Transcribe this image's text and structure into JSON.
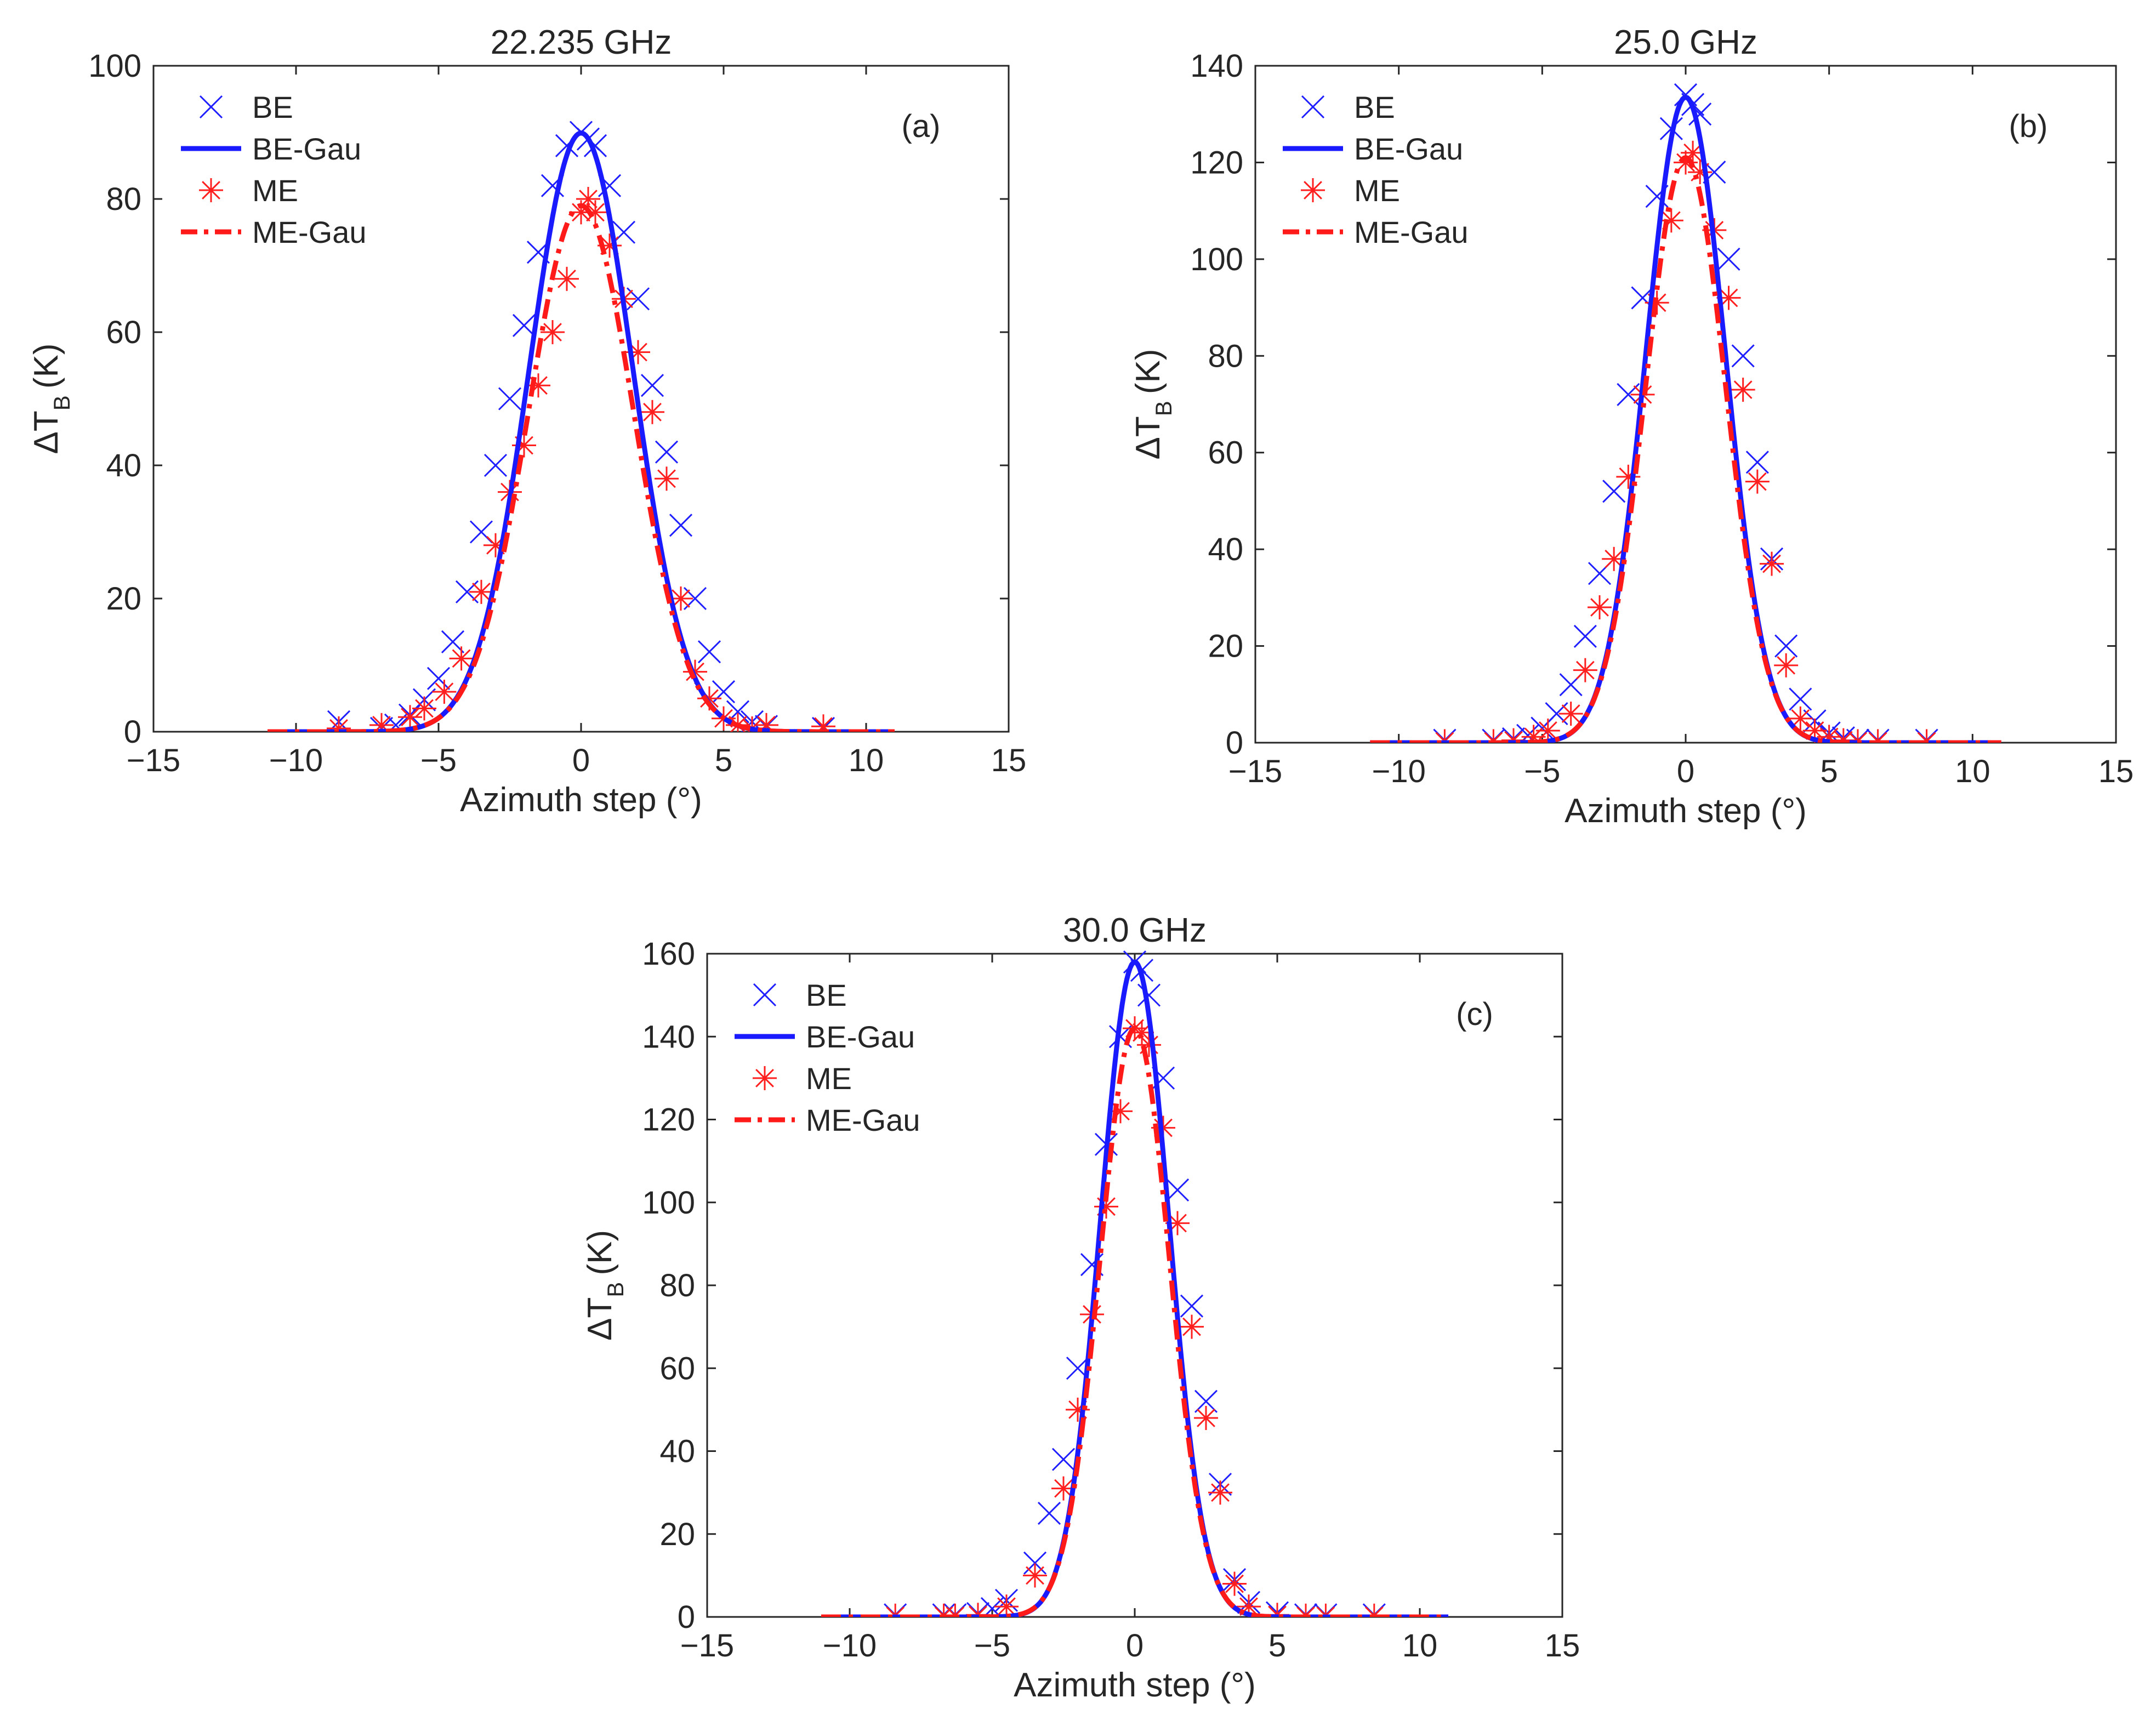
{
  "colors": {
    "be": "#1a1aff",
    "me": "#ff1a1a",
    "axis": "#262626"
  },
  "chart_data": [
    {
      "panel": "(a)",
      "type": "line",
      "title": "22.235 GHz",
      "xlabel": "Azimuth step (°)",
      "ylabel_main": "ΔT",
      "ylabel_sub": "B",
      "ylabel_unit": "(K)",
      "xlim": [
        -15,
        15
      ],
      "ylim": [
        0,
        100
      ],
      "xticks": [
        -15,
        -10,
        -5,
        0,
        5,
        10,
        15
      ],
      "yticks": [
        0,
        20,
        40,
        60,
        80,
        100
      ],
      "xtick_labels": [
        "−15",
        "−10",
        "−5",
        "0",
        "5",
        "10",
        "15"
      ],
      "ytick_labels": [
        "0",
        "20",
        "40",
        "60",
        "80",
        "100"
      ],
      "legend": [
        "BE",
        "BE-Gau",
        "ME",
        "ME-Gau"
      ],
      "series": [
        {
          "name": "BE",
          "kind": "marker-x",
          "x": [
            -8.5,
            -7.0,
            -6.5,
            -6.0,
            -5.5,
            -5.0,
            -4.5,
            -4.0,
            -3.5,
            -3.0,
            -2.5,
            -2.0,
            -1.5,
            -1.0,
            -0.5,
            0.0,
            0.25,
            0.5,
            1.0,
            1.5,
            2.0,
            2.5,
            3.0,
            3.5,
            4.0,
            4.5,
            5.0,
            5.5,
            6.0,
            6.5,
            8.5
          ],
          "y": [
            1.5,
            0.5,
            1.0,
            2.5,
            4.8,
            8.0,
            13.5,
            21.0,
            30.0,
            40.0,
            50.0,
            61.0,
            72.0,
            82.0,
            88.0,
            90.0,
            89.0,
            88.0,
            82.0,
            75.0,
            65.0,
            52.0,
            42.0,
            31.0,
            20.0,
            12.0,
            6.0,
            3.0,
            1.5,
            0.8,
            0.5
          ]
        },
        {
          "name": "BE-Gau",
          "kind": "gaussian",
          "amp": 89.9,
          "mu": 0.0,
          "sigma": 1.82,
          "x_range": [
            -11,
            11
          ]
        },
        {
          "name": "ME",
          "kind": "marker-star",
          "x": [
            -8.5,
            -7.0,
            -6.0,
            -5.5,
            -4.8,
            -4.2,
            -3.5,
            -3.0,
            -2.5,
            -2.0,
            -1.5,
            -1.0,
            -0.5,
            0.0,
            0.25,
            0.5,
            1.0,
            1.5,
            2.0,
            2.5,
            3.0,
            3.5,
            4.0,
            4.5,
            5.0,
            5.5,
            6.0,
            6.5,
            8.5
          ],
          "y": [
            0.5,
            1.0,
            2.2,
            3.5,
            6.0,
            11.0,
            21.0,
            28.0,
            36.0,
            43.0,
            52.0,
            60.0,
            68.0,
            78.0,
            80.0,
            78.0,
            73.0,
            65.0,
            57.0,
            48.0,
            38.0,
            20.0,
            9.0,
            5.0,
            2.0,
            1.0,
            0.5,
            1.0,
            0.8
          ]
        },
        {
          "name": "ME-Gau",
          "kind": "gaussian",
          "amp": 79.0,
          "mu": 0.0,
          "sigma": 1.85,
          "x_range": [
            -11,
            11
          ]
        }
      ]
    },
    {
      "panel": "(b)",
      "type": "line",
      "title": "25.0 GHz",
      "xlabel": "Azimuth step (°)",
      "ylabel_main": "ΔT",
      "ylabel_sub": "B",
      "ylabel_unit": "(K)",
      "xlim": [
        -15,
        15
      ],
      "ylim": [
        0,
        140
      ],
      "xticks": [
        -15,
        -10,
        -5,
        0,
        5,
        10,
        15
      ],
      "yticks": [
        0,
        20,
        40,
        60,
        80,
        100,
        120,
        140
      ],
      "xtick_labels": [
        "−15",
        "−10",
        "−5",
        "0",
        "5",
        "10",
        "15"
      ],
      "ytick_labels": [
        "0",
        "20",
        "40",
        "60",
        "80",
        "100",
        "120",
        "140"
      ],
      "legend": [
        "BE",
        "BE-Gau",
        "ME",
        "ME-Gau"
      ],
      "series": [
        {
          "name": "BE",
          "kind": "marker-x",
          "x": [
            -8.4,
            -6.7,
            -6.0,
            -5.5,
            -5.0,
            -4.5,
            -4.0,
            -3.5,
            -3.0,
            -2.5,
            -2.0,
            -1.5,
            -1.0,
            -0.5,
            0.0,
            0.25,
            0.5,
            1.0,
            1.5,
            2.0,
            2.5,
            3.0,
            3.5,
            4.0,
            4.5,
            5.0,
            5.5,
            6.0,
            6.7,
            8.4
          ],
          "y": [
            0.5,
            0.5,
            0.8,
            1.5,
            3.0,
            6.0,
            12.0,
            22.0,
            35.0,
            52.0,
            72.0,
            92.0,
            113.0,
            127.0,
            134.0,
            132.0,
            130.0,
            118.0,
            100.0,
            80.0,
            58.0,
            38.0,
            20.0,
            9.0,
            4.5,
            2.0,
            1.0,
            0.5,
            0.5,
            0.5
          ]
        },
        {
          "name": "BE-Gau",
          "kind": "gaussian",
          "amp": 133.5,
          "mu": 0.0,
          "sigma": 1.38,
          "x_range": [
            -11,
            11
          ]
        },
        {
          "name": "ME",
          "kind": "marker-star",
          "x": [
            -8.4,
            -6.7,
            -6.0,
            -5.3,
            -4.8,
            -4.0,
            -3.5,
            -3.0,
            -2.5,
            -2.0,
            -1.5,
            -1.0,
            -0.5,
            0.0,
            0.25,
            0.5,
            1.0,
            1.5,
            2.0,
            2.5,
            3.0,
            3.5,
            4.0,
            4.5,
            5.0,
            5.5,
            6.0,
            6.7,
            8.4
          ],
          "y": [
            0.3,
            0.3,
            0.5,
            1.2,
            2.5,
            6.0,
            15.0,
            28.0,
            38.0,
            55.0,
            72.0,
            91.0,
            108.0,
            120.0,
            122.0,
            118.0,
            106.0,
            92.0,
            73.0,
            54.0,
            37.0,
            16.0,
            5.0,
            2.5,
            1.2,
            0.5,
            0.3,
            0.3,
            0.3
          ]
        },
        {
          "name": "ME-Gau",
          "kind": "gaussian",
          "amp": 121.0,
          "mu": 0.0,
          "sigma": 1.4,
          "x_range": [
            -11,
            11
          ]
        }
      ]
    },
    {
      "panel": "(c)",
      "type": "line",
      "title": "30.0 GHz",
      "xlabel": "Azimuth step (°)",
      "ylabel_main": "ΔT",
      "ylabel_sub": "B",
      "ylabel_unit": "(K)",
      "xlim": [
        -15,
        15
      ],
      "ylim": [
        0,
        160
      ],
      "xticks": [
        -15,
        -10,
        -5,
        0,
        5,
        10,
        15
      ],
      "yticks": [
        0,
        20,
        40,
        60,
        80,
        100,
        120,
        140,
        160
      ],
      "xtick_labels": [
        "−15",
        "−10",
        "−5",
        "0",
        "5",
        "10",
        "15"
      ],
      "ytick_labels": [
        "0",
        "20",
        "40",
        "60",
        "80",
        "100",
        "120",
        "140",
        "160"
      ],
      "legend": [
        "BE",
        "BE-Gau",
        "ME",
        "ME-Gau"
      ],
      "series": [
        {
          "name": "BE",
          "kind": "marker-x",
          "x": [
            -8.4,
            -6.7,
            -6.3,
            -5.5,
            -5.0,
            -4.5,
            -3.5,
            -3.0,
            -2.5,
            -2.0,
            -1.5,
            -1.0,
            -0.5,
            0.0,
            0.25,
            0.5,
            1.0,
            1.5,
            2.0,
            2.5,
            3.0,
            3.5,
            4.0,
            5.0,
            6.0,
            6.7,
            8.4
          ],
          "y": [
            0.5,
            0.5,
            0.5,
            0.8,
            2.0,
            4.0,
            13.0,
            25.0,
            38.0,
            60.0,
            85.0,
            114.0,
            140.0,
            158.0,
            156.0,
            150.0,
            130.0,
            103.0,
            75.0,
            52.0,
            32.0,
            9.0,
            3.5,
            1.0,
            0.5,
            0.5,
            0.5
          ]
        },
        {
          "name": "BE-Gau",
          "kind": "gaussian",
          "amp": 158.0,
          "mu": 0.0,
          "sigma": 1.2,
          "x_range": [
            -11,
            11
          ]
        },
        {
          "name": "ME",
          "kind": "marker-star",
          "x": [
            -8.4,
            -6.7,
            -6.3,
            -5.5,
            -4.5,
            -3.5,
            -2.5,
            -2.0,
            -1.5,
            -1.0,
            -0.5,
            0.0,
            0.25,
            0.5,
            1.0,
            1.5,
            2.0,
            2.5,
            3.0,
            3.5,
            4.0,
            5.0,
            6.0,
            6.7,
            8.4
          ],
          "y": [
            0.3,
            0.3,
            0.3,
            0.5,
            2.5,
            10.0,
            31.0,
            50.0,
            73.0,
            99.0,
            122.0,
            142.0,
            141.0,
            138.0,
            118.0,
            95.0,
            70.0,
            48.0,
            30.0,
            8.0,
            2.5,
            0.5,
            0.3,
            0.3,
            0.3
          ]
        },
        {
          "name": "ME-Gau",
          "kind": "gaussian",
          "amp": 142.0,
          "mu": 0.0,
          "sigma": 1.22,
          "x_range": [
            -11,
            11
          ]
        }
      ]
    }
  ]
}
